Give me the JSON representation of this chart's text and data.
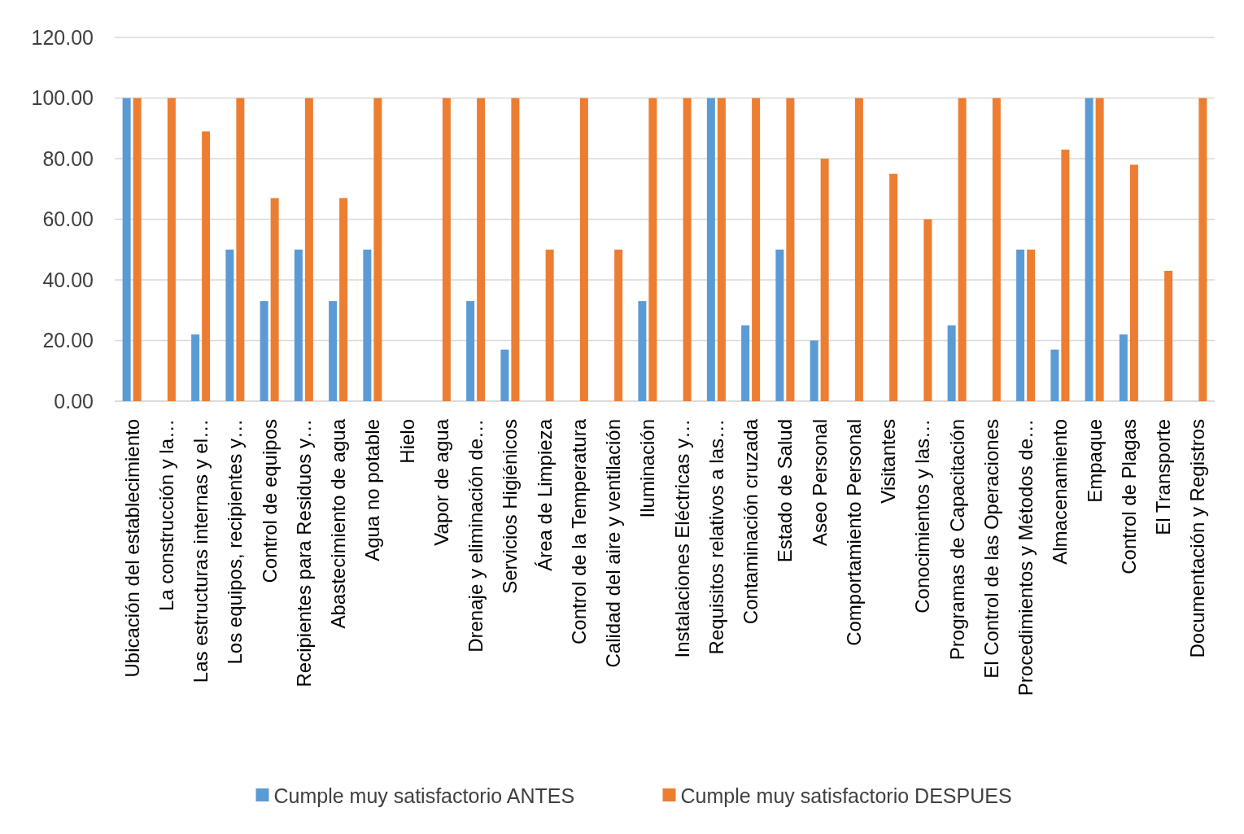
{
  "chart_data": {
    "type": "bar",
    "categories": [
      "Ubicación del establecimiento",
      "La construcción y la…",
      "Las estructuras internas y el…",
      "Los equipos, recipientes y…",
      "Control de equipos",
      "Recipientes para Residuos y…",
      "Abastecimiento de agua",
      "Agua no potable",
      "Hielo",
      "Vapor de agua",
      "Drenaje y eliminación de…",
      "Servicios Higiénicos",
      "Área de Limpieza",
      "Control de la Temperatura",
      "Calidad del aire y ventilación",
      "Iluminación",
      "Instalaciones Eléctricas y…",
      "Requisitos relativos a las…",
      "Contaminación cruzada",
      "Estado de Salud",
      "Aseo Personal",
      "Comportamiento Personal",
      "Visitantes",
      "Conocimientos y las…",
      "Programas de Capacitación",
      "El Control de las Operaciones",
      "Procedimientos y Métodos de…",
      "Almacenamiento",
      "Empaque",
      "Control de Plagas",
      "El Transporte",
      "Documentación y Registros"
    ],
    "series": [
      {
        "name": "Cumple muy satisfactorio ANTES",
        "color": "#5b9bd5",
        "values": [
          100,
          0,
          22,
          50,
          33,
          50,
          33,
          50,
          0,
          0,
          33,
          17,
          0,
          0,
          0,
          33,
          0,
          100,
          25,
          50,
          20,
          0,
          0,
          0,
          25,
          0,
          50,
          17,
          100,
          22,
          0,
          0
        ]
      },
      {
        "name": "Cumple muy satisfactorio DESPUES",
        "color": "#ed7d31",
        "values": [
          100,
          100,
          89,
          100,
          67,
          100,
          67,
          100,
          0,
          100,
          100,
          100,
          50,
          100,
          50,
          100,
          100,
          100,
          100,
          100,
          80,
          100,
          75,
          60,
          100,
          100,
          50,
          83,
          100,
          78,
          43,
          100
        ]
      }
    ],
    "ylim": [
      0,
      120
    ],
    "yticks": [
      {
        "value": 0,
        "label": "0.00"
      },
      {
        "value": 20,
        "label": "20.00"
      },
      {
        "value": 40,
        "label": "40.00"
      },
      {
        "value": 60,
        "label": "60.00"
      },
      {
        "value": 80,
        "label": "80.00"
      },
      {
        "value": 100,
        "label": "100.00"
      },
      {
        "value": 120,
        "label": "120.00"
      }
    ],
    "grid": "y",
    "legend": "bottom"
  }
}
